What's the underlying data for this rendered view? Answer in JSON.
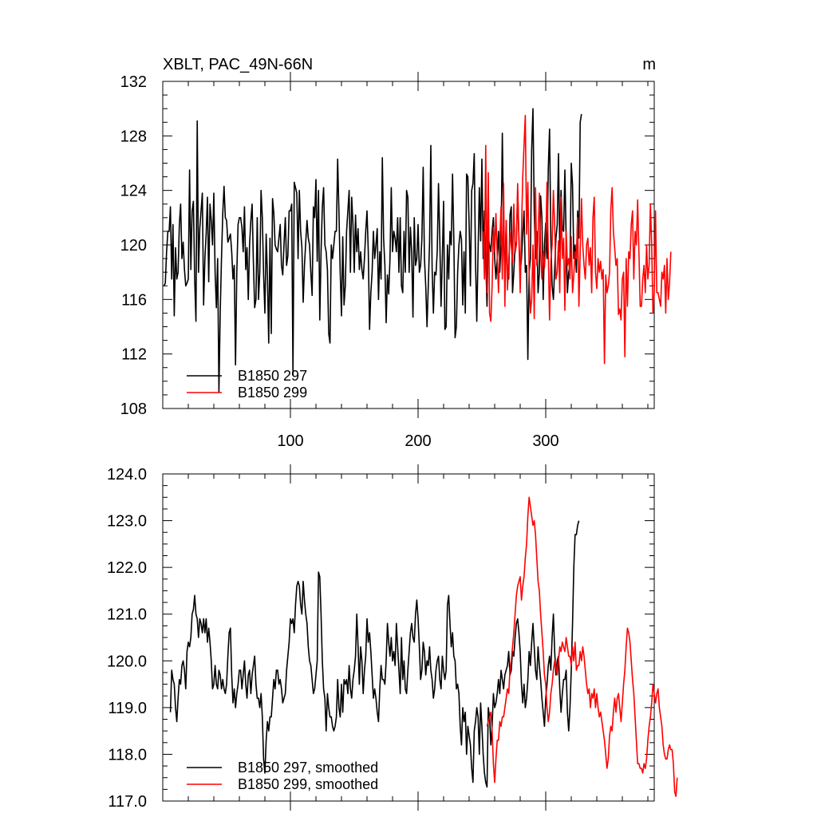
{
  "chart_data": [
    {
      "type": "line",
      "title": "XBLT, PAC_49N-66N",
      "units": "m",
      "xlim": [
        0,
        385
      ],
      "ylim": [
        108,
        132
      ],
      "xticks": [
        100,
        200,
        300
      ],
      "yticks": [
        108,
        112,
        116,
        120,
        124,
        128,
        132
      ],
      "ytick_decimals": 0,
      "legend_position": "lower-left",
      "series": [
        {
          "name": "B1850 297",
          "color": "#000000",
          "x0": 1,
          "values": [
            117.0,
            117.2,
            119.5,
            121.0,
            121.0,
            122.8,
            117.5,
            121.5,
            114.8,
            119.8,
            117.5,
            118.0,
            121.5,
            123.0,
            119.0,
            120.2,
            118.2,
            117.0,
            117.2,
            117.5,
            125.5,
            118.2,
            122.5,
            123.2,
            117.5,
            114.4,
            129.1,
            118.0,
            121.2,
            122.5,
            123.8,
            115.6,
            119.0,
            120.8,
            123.5,
            117.3,
            123.0,
            121.8,
            120.0,
            123.8,
            118.0,
            115.4,
            119.0,
            109.2,
            115.0,
            119.0,
            122.3,
            124.3,
            122.0,
            121.8,
            120.2,
            120.5,
            120.8,
            119.5,
            117.5,
            118.5,
            111.2,
            118.0,
            121.5,
            122.0,
            122.0,
            121.3,
            119.5,
            122.8,
            118.2,
            119.8,
            116.0,
            120.0,
            121.8,
            123.0,
            118.7,
            115.4,
            116.0,
            122.0,
            116.0,
            118.0,
            124.0,
            122.0,
            117.8,
            115.0,
            120.8,
            117.7,
            112.8,
            120.5,
            113.5,
            123.4,
            122.3,
            120.0,
            119.7,
            119.5,
            120.5,
            121.5,
            118.5,
            117.8,
            120.1,
            122.0,
            118.5,
            119.2,
            122.5,
            122.5,
            123.0,
            110.5,
            124.6,
            124.2,
            123.8,
            119.0,
            124.0,
            121.0,
            119.8,
            115.8,
            118.5,
            120.2,
            121.8,
            120.5,
            120.0,
            118.0,
            116.3,
            122.8,
            122.0,
            124.8,
            118.8,
            124.0,
            114.5,
            119.5,
            122.8,
            124.2,
            120.0,
            119.5,
            118.2,
            113.5,
            112.8,
            120.0,
            119.0,
            120.0,
            121.0,
            121.0,
            126.3,
            122.5,
            118.0,
            114.8,
            120.6,
            115.6,
            117.0,
            121.0,
            122.5,
            124.0,
            118.0,
            123.5,
            121.5,
            118.0,
            122.2,
            119.5,
            121.2,
            118.2,
            119.5,
            118.2,
            117.5,
            119.0,
            121.0,
            122.5,
            119.5,
            113.8,
            116.5,
            118.0,
            121.0,
            119.0,
            120.0,
            121.2,
            116.0,
            119.5,
            117.5,
            126.4,
            120.5,
            118.5,
            114.3,
            117.8,
            116.4,
            119.0,
            124.2,
            119.5,
            121.0,
            120.5,
            119.5,
            122.0,
            118.0,
            122.0,
            117.0,
            116.5,
            121.0,
            118.0,
            124.0,
            123.5,
            118.0,
            121.3,
            119.5,
            114.7,
            122.0,
            118.5,
            119.0,
            121.5,
            118.0,
            118.5,
            120.5,
            125.7,
            119.0,
            117.0,
            114.0,
            117.0,
            120.2,
            127.3,
            118.3,
            115.0,
            118.0,
            117.8,
            119.5,
            124.5,
            120.5,
            115.5,
            119.0,
            123.2,
            113.8,
            114.0,
            120.0,
            117.5,
            121.0,
            120.0,
            125.2,
            120.5,
            113.2,
            114.0,
            118.0,
            120.0,
            121.0,
            120.4,
            115.6,
            119.5,
            115.0,
            125.2,
            125.0,
            121.5,
            117.0,
            124.0,
            124.5,
            126.7,
            118.8,
            114.4,
            119.5,
            124.2,
            120.3,
            126.3,
            119.0,
            122.5,
            119.0,
            115.5,
            120.6,
            120.0,
            119.5,
            121.0,
            122.0,
            119.0,
            117.5,
            119.0,
            121.0,
            118.0,
            120.0,
            128.2,
            121.0,
            117.5,
            121.8,
            118.0,
            117.5,
            122.2,
            122.8,
            116.5,
            118.0,
            120.0,
            120.2,
            124.0,
            120.5,
            118.0,
            119.0,
            120.8,
            122.5,
            118.0,
            118.5,
            111.6,
            118.0,
            119.0,
            127.0,
            130.0,
            122.5,
            119.0,
            121.0,
            116.5,
            118.0,
            123.6,
            122.0,
            116.0,
            120.0,
            121.6,
            119.0,
            125.6,
            128.5,
            120.5,
            117.0,
            116.0,
            118.2,
            120.5,
            121.5,
            126.7,
            119.5,
            124.0,
            121.2,
            121.0,
            125.5,
            120.5,
            116.5,
            118.0,
            118.5,
            126.0,
            124.4,
            119.0,
            120.0,
            118.0,
            122.5,
            120.5,
            129.0,
            129.6
          ]
        },
        {
          "name": "B1850 299",
          "color": "#ff0000",
          "x0": 251,
          "values": [
            121.0,
            117.5,
            127.3,
            116.5,
            125.3,
            115.0,
            114.4,
            117.0,
            121.3,
            119.5,
            122.3,
            119.2,
            116.5,
            120.2,
            122.8,
            117.5,
            124.5,
            115.5,
            121.8,
            116.7,
            118.5,
            121.0,
            120.0,
            118.7,
            123.0,
            119.4,
            120.0,
            124.5,
            120.5,
            116.5,
            121.0,
            125.0,
            127.3,
            129.5,
            120.8,
            124.6,
            118.0,
            115.0,
            116.0,
            120.0,
            114.6,
            124.2,
            118.5,
            120.5,
            123.8,
            119.5,
            117.5,
            119.5,
            118.3,
            120.0,
            124.6,
            119.5,
            114.5,
            118.8,
            120.0,
            124.0,
            121.5,
            117.5,
            118.0,
            120.3,
            116.5,
            123.5,
            119.0,
            120.5,
            115.2,
            121.0,
            118.5,
            119.0,
            117.5,
            120.6,
            116.5,
            117.8,
            119.5,
            119.0,
            122.0,
            115.5,
            119.5,
            123.4,
            120.0,
            118.5,
            117.5,
            120.0,
            120.5,
            118.5,
            119.8,
            116.5,
            122.0,
            123.5,
            118.0,
            116.8,
            119.0,
            118.0,
            118.8,
            117.5,
            118.2,
            111.3,
            117.8,
            116.5,
            117.0,
            118.0,
            122.6,
            124.2,
            121.0,
            119.8,
            118.5,
            119.0,
            114.9,
            115.3,
            114.5,
            117.5,
            118.0,
            111.8,
            119.0,
            115.5,
            119.5,
            119.0,
            121.5,
            122.5,
            117.5,
            121.0,
            120.0,
            123.3,
            119.5,
            115.5,
            115.5,
            117.5,
            118.5,
            116.5,
            120.0,
            117.5,
            118.5,
            123.0,
            120.0,
            115.0,
            116.5,
            122.5,
            116.5,
            116.5,
            116.0,
            115.5,
            118.0,
            117.5,
            118.5,
            115.0,
            119.0,
            116.0,
            117.2,
            119.5
          ]
        }
      ]
    },
    {
      "type": "line",
      "title": "",
      "units": "",
      "xlim": [
        0,
        385
      ],
      "ylim": [
        117,
        124
      ],
      "xticks": [
        100,
        200,
        300
      ],
      "yticks": [
        117,
        118,
        119,
        120,
        121,
        122,
        123,
        124
      ],
      "ytick_decimals": 1,
      "legend_position": "lower-left",
      "series": [
        {
          "name": "B1850 297, smoothed",
          "color": "#000000",
          "x0": 6,
          "values": [
            118.9,
            119.8,
            119.6,
            119.5,
            119.0,
            118.7,
            119.2,
            119.6,
            119.5,
            119.9,
            120.0,
            119.8,
            119.4,
            120.2,
            120.4,
            120.3,
            120.5,
            121.0,
            121.1,
            121.4,
            121.0,
            120.9,
            120.5,
            120.9,
            120.8,
            120.6,
            120.9,
            120.6,
            120.9,
            120.4,
            120.7,
            120.4,
            120.0,
            119.4,
            119.5,
            119.9,
            119.5,
            119.4,
            119.8,
            119.7,
            119.4,
            119.6,
            119.4,
            119.3,
            119.5,
            120.1,
            120.6,
            120.7,
            119.7,
            119.1,
            119.4,
            119.0,
            119.3,
            119.5,
            119.8,
            119.8,
            119.4,
            119.7,
            120.0,
            119.5,
            119.2,
            119.7,
            119.8,
            119.3,
            119.7,
            119.9,
            120.1,
            119.5,
            119.2,
            119.2,
            119.0,
            119.3,
            118.8,
            117.9,
            117.6,
            118.3,
            118.7,
            118.5,
            118.8,
            118.8,
            119.2,
            119.6,
            119.4,
            119.8,
            119.8,
            119.5,
            119.6,
            119.4,
            119.1,
            119.2,
            119.3,
            119.8,
            120.1,
            120.4,
            120.9,
            120.8,
            120.9,
            120.6,
            121.2,
            121.6,
            121.7,
            121.6,
            121.2,
            121.0,
            121.7,
            121.3,
            121.0,
            120.8,
            120.3,
            120.0,
            119.9,
            119.6,
            119.3,
            119.4,
            119.7,
            120.0,
            121.9,
            121.8,
            121.0,
            120.0,
            119.4,
            119.2,
            118.5,
            119.3,
            119.0,
            118.8,
            118.8,
            118.6,
            118.5,
            118.6,
            118.8,
            119.6,
            119.0,
            118.8,
            119.5,
            118.9,
            119.6,
            119.5,
            119.6,
            119.3,
            119.9,
            119.4,
            119.2,
            119.6,
            119.8,
            120.1,
            121.0,
            120.3,
            119.5,
            120.3,
            120.0,
            119.3,
            119.8,
            120.1,
            120.9,
            120.4,
            120.6,
            120.2,
            119.7,
            119.2,
            119.4,
            119.2,
            118.9,
            118.7,
            119.4,
            119.9,
            119.6,
            119.6,
            119.5,
            120.0,
            120.8,
            120.4,
            120.1,
            120.5,
            120.0,
            120.2,
            119.9,
            120.8,
            120.3,
            119.8,
            119.3,
            120.5,
            119.6,
            120.0,
            119.4,
            119.3,
            119.8,
            120.2,
            120.6,
            120.8,
            120.5,
            120.4,
            121.0,
            121.3,
            120.9,
            120.3,
            119.6,
            119.8,
            120.4,
            120.2,
            119.7,
            120.0,
            119.9,
            120.3,
            119.8,
            119.6,
            119.2,
            119.4,
            119.8,
            120.0,
            120.1,
            119.6,
            119.4,
            120.1,
            119.8,
            119.6,
            119.8,
            121.2,
            121.4,
            120.8,
            120.3,
            120.6,
            120.1,
            120.0,
            119.4,
            119.5,
            119.3,
            118.6,
            118.2,
            119.0,
            118.7,
            118.9,
            118.0,
            118.6,
            118.4,
            118.2,
            117.7,
            117.4,
            118.5,
            118.7,
            119.0,
            118.8,
            118.0,
            119.1,
            118.6,
            118.0,
            117.6,
            117.4,
            117.3,
            119.0,
            118.8,
            118.2,
            118.6,
            119.3,
            119.0,
            119.1,
            119.3,
            119.6,
            119.3,
            119.8,
            119.6,
            119.4,
            119.7,
            119.8,
            119.9,
            120.2,
            119.7,
            119.8,
            120.2,
            120.1,
            120.5,
            120.8,
            120.9,
            120.6,
            120.2,
            119.5,
            119.1,
            119.5,
            119.0,
            119.2,
            119.6,
            120.2,
            119.9,
            120.4,
            120.8,
            120.3,
            119.8,
            119.6,
            120.3,
            119.9,
            119.6,
            119.2,
            118.9,
            118.6,
            119.2,
            119.5,
            119.9,
            120.1,
            119.8,
            120.5,
            121.0,
            120.2,
            119.7,
            120.0,
            120.1,
            119.4,
            118.9,
            119.3,
            119.6,
            119.6,
            119.8,
            118.9,
            118.5,
            119.0,
            119.8,
            120.8,
            122.0,
            122.7,
            122.7,
            122.9,
            123.0
          ]
        },
        {
          "name": "B1850 299, smoothed",
          "color": "#ff0000",
          "x0": 254,
          "values": [
            118.6,
            118.7,
            118.8,
            118.9,
            118.5,
            117.8,
            117.4,
            117.9,
            118.3,
            118.3,
            118.7,
            118.6,
            118.8,
            118.8,
            119.0,
            119.2,
            119.4,
            119.3,
            119.8,
            120.0,
            120.3,
            120.6,
            121.0,
            121.4,
            121.6,
            121.7,
            121.8,
            121.3,
            121.6,
            121.8,
            122.2,
            122.5,
            123.1,
            123.5,
            123.3,
            123.1,
            122.9,
            123.0,
            122.7,
            122.2,
            121.7,
            121.5,
            121.0,
            120.6,
            120.2,
            119.7,
            119.5,
            119.0,
            118.7,
            118.9,
            119.3,
            119.5,
            119.8,
            120.0,
            119.9,
            119.7,
            120.0,
            120.3,
            120.2,
            120.4,
            120.3,
            120.2,
            120.5,
            120.3,
            120.1,
            120.1,
            119.9,
            120.3,
            120.0,
            120.4,
            119.8,
            119.9,
            119.9,
            120.2,
            120.0,
            120.3,
            120.1,
            119.8,
            119.5,
            119.3,
            119.4,
            119.0,
            119.3,
            119.2,
            119.4,
            119.0,
            119.3,
            119.0,
            118.8,
            118.9,
            118.7,
            118.5,
            118.3,
            118.0,
            117.7,
            117.9,
            118.4,
            118.6,
            118.5,
            118.9,
            119.2,
            118.9,
            119.2,
            119.3,
            119.0,
            118.7,
            119.1,
            119.5,
            119.8,
            120.3,
            120.7,
            120.6,
            120.4,
            120.0,
            119.6,
            119.3,
            118.8,
            118.3,
            117.8,
            117.8,
            117.7,
            117.7,
            117.6,
            117.8,
            117.7,
            117.9,
            118.3,
            118.6,
            118.8,
            119.1,
            119.5,
            119.3,
            119.1,
            119.3,
            119.4,
            119.0,
            118.8,
            118.6,
            118.2,
            118.0,
            117.9,
            117.9,
            118.1,
            118.2,
            118.1,
            118.1,
            117.8,
            117.2,
            117.1,
            117.5
          ]
        }
      ]
    }
  ]
}
